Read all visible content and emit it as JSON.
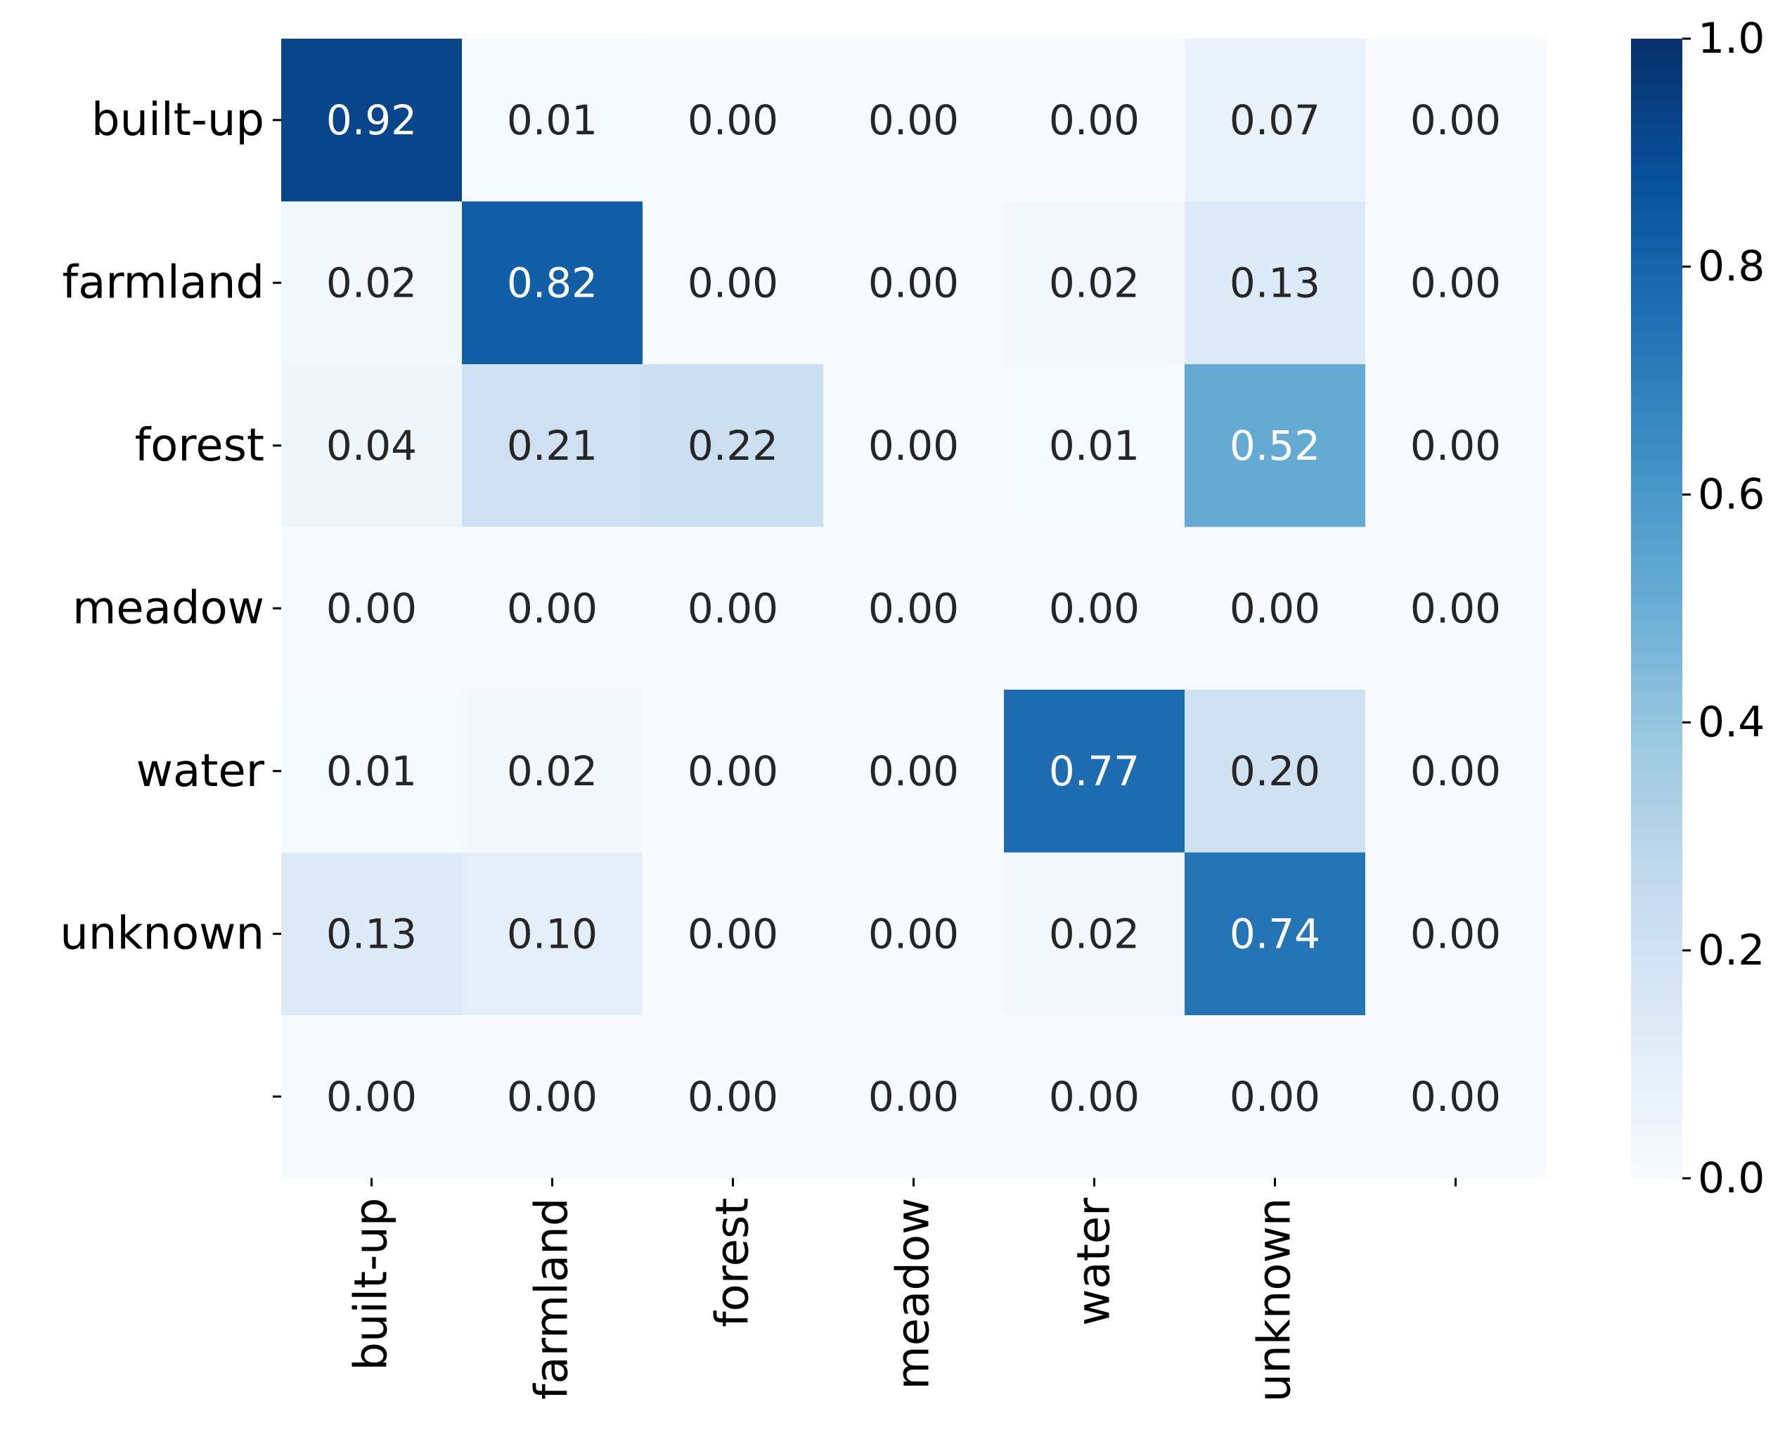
{
  "chart_data": {
    "type": "heatmap",
    "title": "",
    "xlabel": "",
    "ylabel": "",
    "row_labels": [
      "built-up",
      "farmland",
      "forest",
      "meadow",
      "water",
      "unknown",
      ""
    ],
    "col_labels": [
      "built-up",
      "farmland",
      "forest",
      "meadow",
      "water",
      "unknown",
      ""
    ],
    "values": [
      [
        0.92,
        0.01,
        0.0,
        0.0,
        0.0,
        0.07,
        0.0
      ],
      [
        0.02,
        0.82,
        0.0,
        0.0,
        0.02,
        0.13,
        0.0
      ],
      [
        0.04,
        0.21,
        0.22,
        0.0,
        0.01,
        0.52,
        0.0
      ],
      [
        0.0,
        0.0,
        0.0,
        0.0,
        0.0,
        0.0,
        0.0
      ],
      [
        0.01,
        0.02,
        0.0,
        0.0,
        0.77,
        0.2,
        0.0
      ],
      [
        0.13,
        0.1,
        0.0,
        0.0,
        0.02,
        0.74,
        0.0
      ],
      [
        0.0,
        0.0,
        0.0,
        0.0,
        0.0,
        0.0,
        0.0
      ]
    ],
    "value_labels": [
      [
        "0.92",
        "0.01",
        "0.00",
        "0.00",
        "0.00",
        "0.07",
        "0.00"
      ],
      [
        "0.02",
        "0.82",
        "0.00",
        "0.00",
        "0.02",
        "0.13",
        "0.00"
      ],
      [
        "0.04",
        "0.21",
        "0.22",
        "0.00",
        "0.01",
        "0.52",
        "0.00"
      ],
      [
        "0.00",
        "0.00",
        "0.00",
        "0.00",
        "0.00",
        "0.00",
        "0.00"
      ],
      [
        "0.01",
        "0.02",
        "0.00",
        "0.00",
        "0.77",
        "0.20",
        "0.00"
      ],
      [
        "0.13",
        "0.10",
        "0.00",
        "0.00",
        "0.02",
        "0.74",
        "0.00"
      ],
      [
        "0.00",
        "0.00",
        "0.00",
        "0.00",
        "0.00",
        "0.00",
        "0.00"
      ]
    ],
    "color_scale": {
      "name": "Blues",
      "range": [
        0.0,
        1.0
      ],
      "ticks": [
        "0.0",
        "0.2",
        "0.4",
        "0.6",
        "0.8",
        "1.0"
      ],
      "low_color": "#f7fbff",
      "high_color": "#08306b"
    },
    "text_colors": {
      "dark": "#262626",
      "light": "#ffffff"
    },
    "grid": false
  }
}
